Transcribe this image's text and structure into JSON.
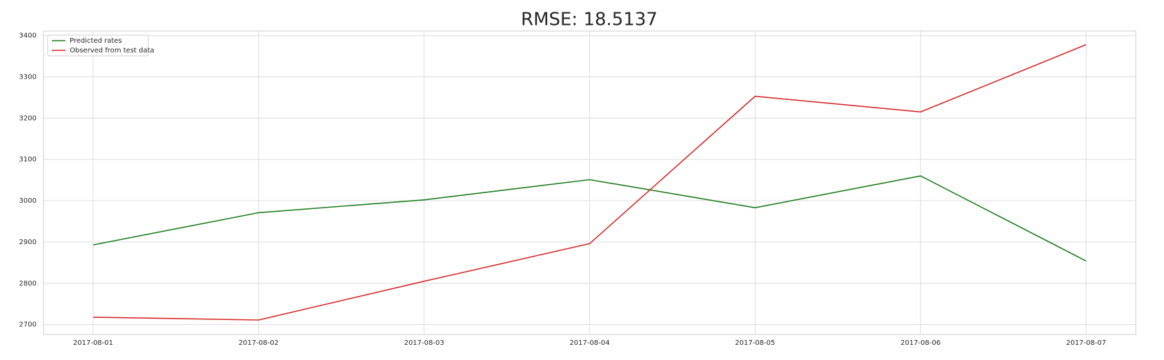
{
  "chart_data": {
    "type": "line",
    "title": "RMSE: 18.5137",
    "categories": [
      "2017-08-01",
      "2017-08-02",
      "2017-08-03",
      "2017-08-04",
      "2017-08-05",
      "2017-08-06",
      "2017-08-07"
    ],
    "series": [
      {
        "name": "Predicted rates",
        "color": "#1a7a1a",
        "values": [
          2893,
          2971,
          3002,
          3051,
          2983,
          3060,
          2854
        ]
      },
      {
        "name": "Observed from test data",
        "color": "#d62728",
        "values": [
          2718,
          2711,
          2805,
          2896,
          3253,
          3215,
          3378
        ]
      }
    ],
    "ylim": [
      2676,
      3411
    ],
    "yticks": [
      2700,
      2800,
      2900,
      3000,
      3100,
      3200,
      3300,
      3400
    ],
    "grid": true,
    "legend": "upper-left"
  }
}
